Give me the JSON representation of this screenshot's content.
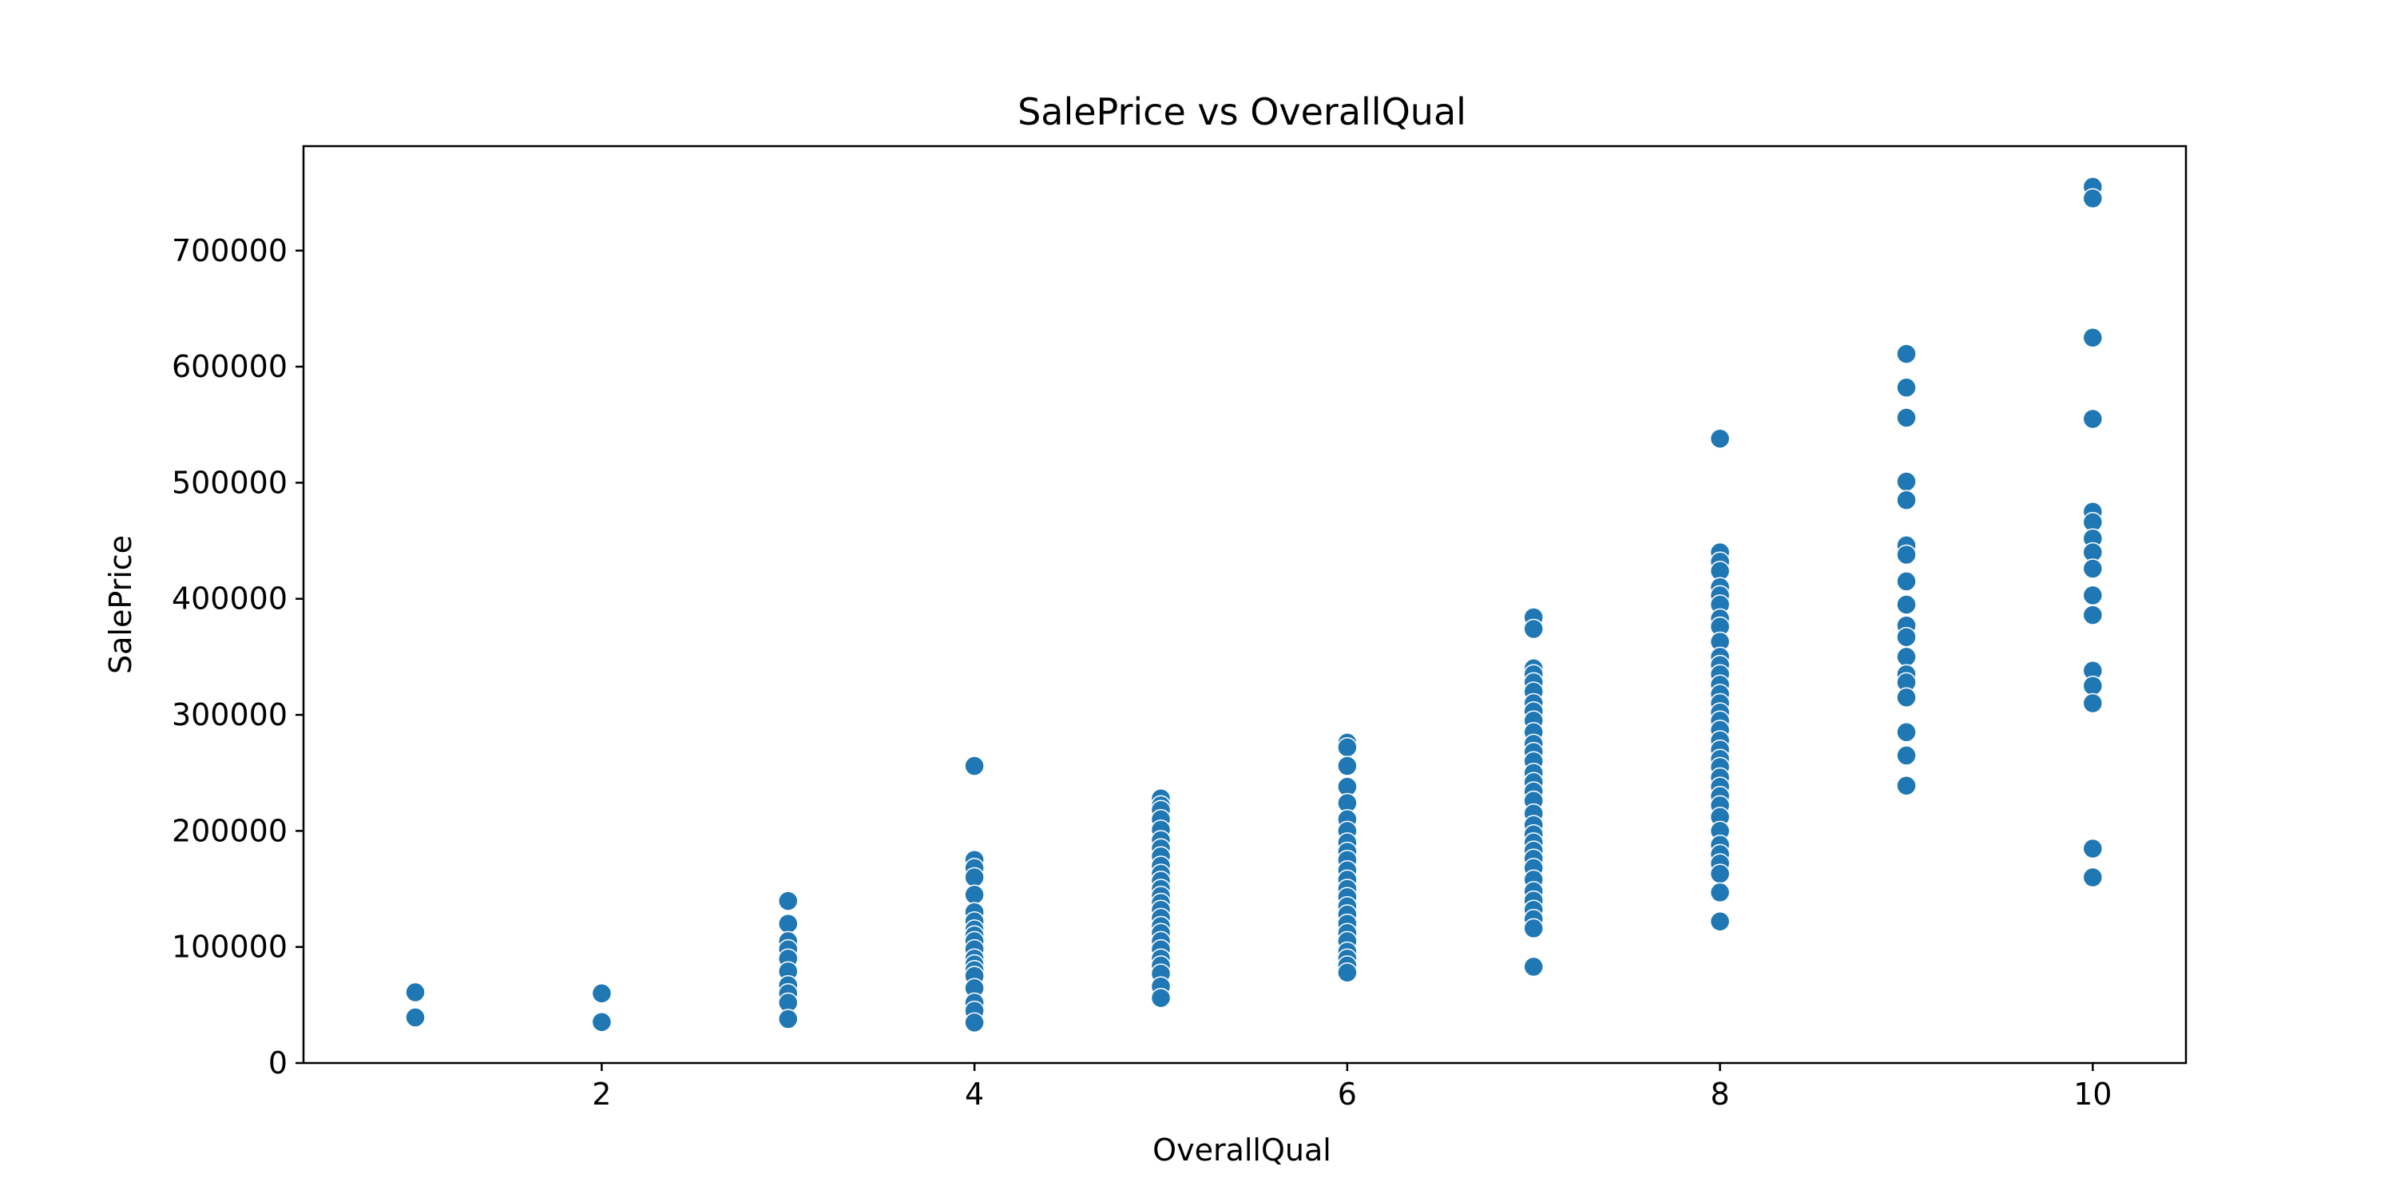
{
  "chart_data": {
    "type": "scatter",
    "title": "SalePrice vs OverallQual",
    "xlabel": "OverallQual",
    "ylabel": "SalePrice",
    "xlim": [
      0.4,
      10.5
    ],
    "ylim": [
      0,
      790000
    ],
    "xticks": [
      2,
      4,
      6,
      8,
      10
    ],
    "yticks": [
      0,
      100000,
      200000,
      300000,
      400000,
      500000,
      600000,
      700000
    ],
    "grid": false,
    "color": "#1f77b4",
    "series": [
      {
        "points": [
          [
            1,
            61000
          ],
          [
            1,
            39300
          ],
          [
            2,
            60000
          ],
          [
            2,
            35311
          ],
          [
            3,
            139600
          ],
          [
            3,
            120000
          ],
          [
            3,
            105000
          ],
          [
            3,
            98000
          ],
          [
            3,
            90000
          ],
          [
            3,
            79000
          ],
          [
            3,
            67000
          ],
          [
            3,
            60000
          ],
          [
            3,
            52000
          ],
          [
            3,
            37900
          ],
          [
            4,
            256000
          ],
          [
            4,
            175000
          ],
          [
            4,
            168000
          ],
          [
            4,
            160000
          ],
          [
            4,
            145000
          ],
          [
            4,
            130000
          ],
          [
            4,
            122000
          ],
          [
            4,
            115000
          ],
          [
            4,
            110000
          ],
          [
            4,
            105000
          ],
          [
            4,
            98000
          ],
          [
            4,
            90000
          ],
          [
            4,
            85000
          ],
          [
            4,
            80000
          ],
          [
            4,
            75000
          ],
          [
            4,
            64500
          ],
          [
            4,
            52000
          ],
          [
            4,
            45000
          ],
          [
            4,
            34900
          ],
          [
            5,
            228000
          ],
          [
            5,
            222000
          ],
          [
            5,
            218000
          ],
          [
            5,
            210000
          ],
          [
            5,
            201000
          ],
          [
            5,
            192000
          ],
          [
            5,
            185000
          ],
          [
            5,
            178000
          ],
          [
            5,
            170000
          ],
          [
            5,
            163000
          ],
          [
            5,
            157000
          ],
          [
            5,
            150000
          ],
          [
            5,
            144000
          ],
          [
            5,
            138000
          ],
          [
            5,
            132000
          ],
          [
            5,
            125000
          ],
          [
            5,
            118000
          ],
          [
            5,
            112000
          ],
          [
            5,
            105000
          ],
          [
            5,
            98000
          ],
          [
            5,
            90000
          ],
          [
            5,
            84000
          ],
          [
            5,
            77000
          ],
          [
            5,
            66000
          ],
          [
            5,
            56000
          ],
          [
            6,
            276000
          ],
          [
            6,
            272000
          ],
          [
            6,
            256000
          ],
          [
            6,
            238000
          ],
          [
            6,
            224000
          ],
          [
            6,
            210000
          ],
          [
            6,
            200000
          ],
          [
            6,
            190000
          ],
          [
            6,
            182000
          ],
          [
            6,
            175000
          ],
          [
            6,
            166000
          ],
          [
            6,
            158000
          ],
          [
            6,
            150000
          ],
          [
            6,
            143000
          ],
          [
            6,
            135000
          ],
          [
            6,
            128000
          ],
          [
            6,
            120000
          ],
          [
            6,
            112000
          ],
          [
            6,
            105000
          ],
          [
            6,
            96000
          ],
          [
            6,
            90000
          ],
          [
            6,
            84000
          ],
          [
            6,
            78000
          ],
          [
            7,
            384000
          ],
          [
            7,
            374000
          ],
          [
            7,
            340000
          ],
          [
            7,
            335000
          ],
          [
            7,
            328000
          ],
          [
            7,
            320000
          ],
          [
            7,
            310000
          ],
          [
            7,
            303000
          ],
          [
            7,
            295000
          ],
          [
            7,
            285000
          ],
          [
            7,
            275000
          ],
          [
            7,
            268000
          ],
          [
            7,
            260000
          ],
          [
            7,
            250000
          ],
          [
            7,
            242000
          ],
          [
            7,
            234000
          ],
          [
            7,
            226000
          ],
          [
            7,
            215000
          ],
          [
            7,
            205000
          ],
          [
            7,
            197000
          ],
          [
            7,
            190000
          ],
          [
            7,
            183000
          ],
          [
            7,
            176000
          ],
          [
            7,
            168000
          ],
          [
            7,
            158000
          ],
          [
            7,
            148000
          ],
          [
            7,
            140000
          ],
          [
            7,
            132000
          ],
          [
            7,
            124000
          ],
          [
            7,
            116000
          ],
          [
            7,
            83000
          ],
          [
            8,
            538000
          ],
          [
            8,
            440000
          ],
          [
            8,
            432000
          ],
          [
            8,
            424000
          ],
          [
            8,
            410000
          ],
          [
            8,
            403000
          ],
          [
            8,
            395000
          ],
          [
            8,
            383000
          ],
          [
            8,
            376000
          ],
          [
            8,
            363000
          ],
          [
            8,
            350000
          ],
          [
            8,
            343000
          ],
          [
            8,
            335000
          ],
          [
            8,
            326000
          ],
          [
            8,
            318000
          ],
          [
            8,
            310000
          ],
          [
            8,
            302000
          ],
          [
            8,
            295000
          ],
          [
            8,
            287000
          ],
          [
            8,
            278000
          ],
          [
            8,
            270000
          ],
          [
            8,
            262000
          ],
          [
            8,
            255000
          ],
          [
            8,
            246000
          ],
          [
            8,
            238000
          ],
          [
            8,
            230000
          ],
          [
            8,
            222000
          ],
          [
            8,
            212000
          ],
          [
            8,
            200000
          ],
          [
            8,
            188000
          ],
          [
            8,
            180000
          ],
          [
            8,
            172000
          ],
          [
            8,
            163000
          ],
          [
            8,
            147000
          ],
          [
            8,
            122000
          ],
          [
            9,
            611000
          ],
          [
            9,
            582000
          ],
          [
            9,
            556000
          ],
          [
            9,
            501000
          ],
          [
            9,
            485000
          ],
          [
            9,
            446000
          ],
          [
            9,
            438000
          ],
          [
            9,
            415000
          ],
          [
            9,
            395000
          ],
          [
            9,
            377000
          ],
          [
            9,
            367000
          ],
          [
            9,
            350000
          ],
          [
            9,
            335000
          ],
          [
            9,
            328000
          ],
          [
            9,
            315000
          ],
          [
            9,
            285000
          ],
          [
            9,
            265000
          ],
          [
            9,
            239000
          ],
          [
            10,
            755000
          ],
          [
            10,
            745000
          ],
          [
            10,
            625000
          ],
          [
            10,
            555000
          ],
          [
            10,
            475000
          ],
          [
            10,
            466000
          ],
          [
            10,
            452000
          ],
          [
            10,
            440000
          ],
          [
            10,
            426000
          ],
          [
            10,
            403000
          ],
          [
            10,
            386000
          ],
          [
            10,
            338000
          ],
          [
            10,
            325000
          ],
          [
            10,
            310000
          ],
          [
            10,
            184750
          ],
          [
            10,
            160000
          ]
        ]
      }
    ]
  }
}
